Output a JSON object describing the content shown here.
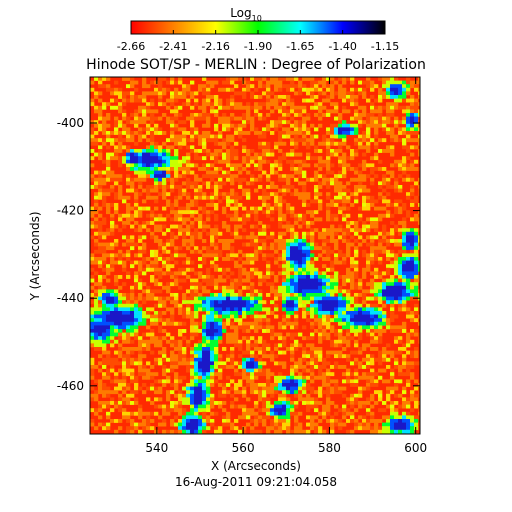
{
  "chart_data": {
    "type": "heatmap",
    "title": "Hinode SOT/SP - MERLIN : Degree of Polarization",
    "xlabel": "X (Arcseconds)",
    "ylabel": "Y (Arcseconds)",
    "date_label": "16-Aug-2011 09:21:04.058",
    "xlim": [
      524.5,
      601
    ],
    "ylim": [
      -471,
      -389.5
    ],
    "xticks": [
      540,
      560,
      580,
      600
    ],
    "yticks": [
      -400,
      -420,
      -440,
      -460
    ],
    "colorbar": {
      "title_main": "Log",
      "title_sub": "10",
      "range": [
        -2.66,
        -1.15
      ],
      "ticks": [
        "-2.66",
        "-2.41",
        "-2.16",
        "-1.90",
        "-1.65",
        "-1.40",
        "-1.15"
      ],
      "colors": [
        "#ff0000",
        "#ff8000",
        "#ffff00",
        "#00ff00",
        "#00ffff",
        "#0000ff",
        "#000000"
      ]
    },
    "grid": false,
    "colormap": "rainbow"
  }
}
